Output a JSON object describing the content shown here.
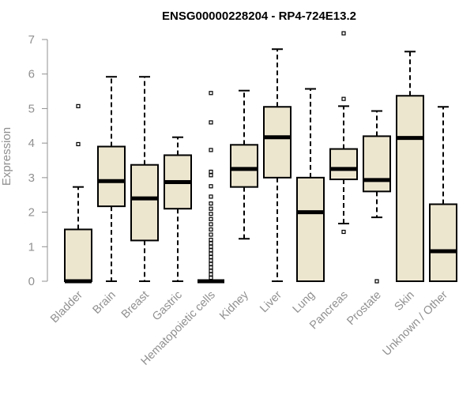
{
  "chart_data": {
    "type": "boxplot",
    "title": "ENSG00000228204 - RP4-724E13.2",
    "xlabel": "",
    "ylabel": "Expression",
    "ylim": [
      0,
      7
    ],
    "yticks": [
      0,
      1,
      2,
      3,
      4,
      5,
      6,
      7
    ],
    "grid": false,
    "box_fill": "#ede6cf",
    "box_stroke": "#000000",
    "axis_color": "#909090",
    "categories": [
      "Bladder",
      "Brain",
      "Breast",
      "Gastric",
      "Hematopoietic cells",
      "Kidney",
      "Liver",
      "Lung",
      "Pancreas",
      "Prostate",
      "Skin",
      "Unknown / Other"
    ],
    "boxes": [
      {
        "name": "Bladder",
        "whisker_low": 0,
        "q1": 0,
        "median": 0,
        "q3": 1.5,
        "whisker_high": 2.73,
        "outliers": [
          3.97,
          5.07
        ]
      },
      {
        "name": "Brain",
        "whisker_low": 0,
        "q1": 2.17,
        "median": 2.9,
        "q3": 3.9,
        "whisker_high": 5.92,
        "outliers": []
      },
      {
        "name": "Breast",
        "whisker_low": 0,
        "q1": 1.18,
        "median": 2.4,
        "q3": 3.37,
        "whisker_high": 5.92,
        "outliers": []
      },
      {
        "name": "Gastric",
        "whisker_low": 0,
        "q1": 2.1,
        "median": 2.87,
        "q3": 3.65,
        "whisker_high": 4.17,
        "outliers": []
      },
      {
        "name": "Hematopoietic cells",
        "whisker_low": 0,
        "q1": 0,
        "median": 0,
        "q3": 0,
        "whisker_high": 0,
        "outliers": [
          0.1,
          0.2,
          0.3,
          0.4,
          0.5,
          0.6,
          0.7,
          0.8,
          0.9,
          1.0,
          1.1,
          1.2,
          1.35,
          1.5,
          1.65,
          1.8,
          1.95,
          2.1,
          2.25,
          2.45,
          2.75,
          3.07,
          3.17,
          3.8,
          4.6,
          5.45
        ]
      },
      {
        "name": "Kidney",
        "whisker_low": 1.23,
        "q1": 2.73,
        "median": 3.25,
        "q3": 3.95,
        "whisker_high": 5.52,
        "outliers": []
      },
      {
        "name": "Liver",
        "whisker_low": 0,
        "q1": 3.0,
        "median": 4.17,
        "q3": 5.05,
        "whisker_high": 6.72,
        "outliers": []
      },
      {
        "name": "Lung",
        "whisker_low": 0,
        "q1": 0,
        "median": 2.0,
        "q3": 3.0,
        "whisker_high": 5.57,
        "outliers": []
      },
      {
        "name": "Pancreas",
        "whisker_low": 1.67,
        "q1": 2.95,
        "median": 3.25,
        "q3": 3.83,
        "whisker_high": 5.07,
        "outliers": [
          1.43,
          5.28,
          7.18
        ]
      },
      {
        "name": "Prostate",
        "whisker_low": 1.85,
        "q1": 2.6,
        "median": 2.93,
        "q3": 4.2,
        "whisker_high": 4.93,
        "outliers": [
          0
        ]
      },
      {
        "name": "Skin",
        "whisker_low": 0,
        "q1": 0,
        "median": 4.15,
        "q3": 5.37,
        "whisker_high": 6.65,
        "outliers": []
      },
      {
        "name": "Unknown / Other",
        "whisker_low": 0,
        "q1": 0,
        "median": 0.87,
        "q3": 2.23,
        "whisker_high": 5.05,
        "outliers": []
      }
    ]
  }
}
